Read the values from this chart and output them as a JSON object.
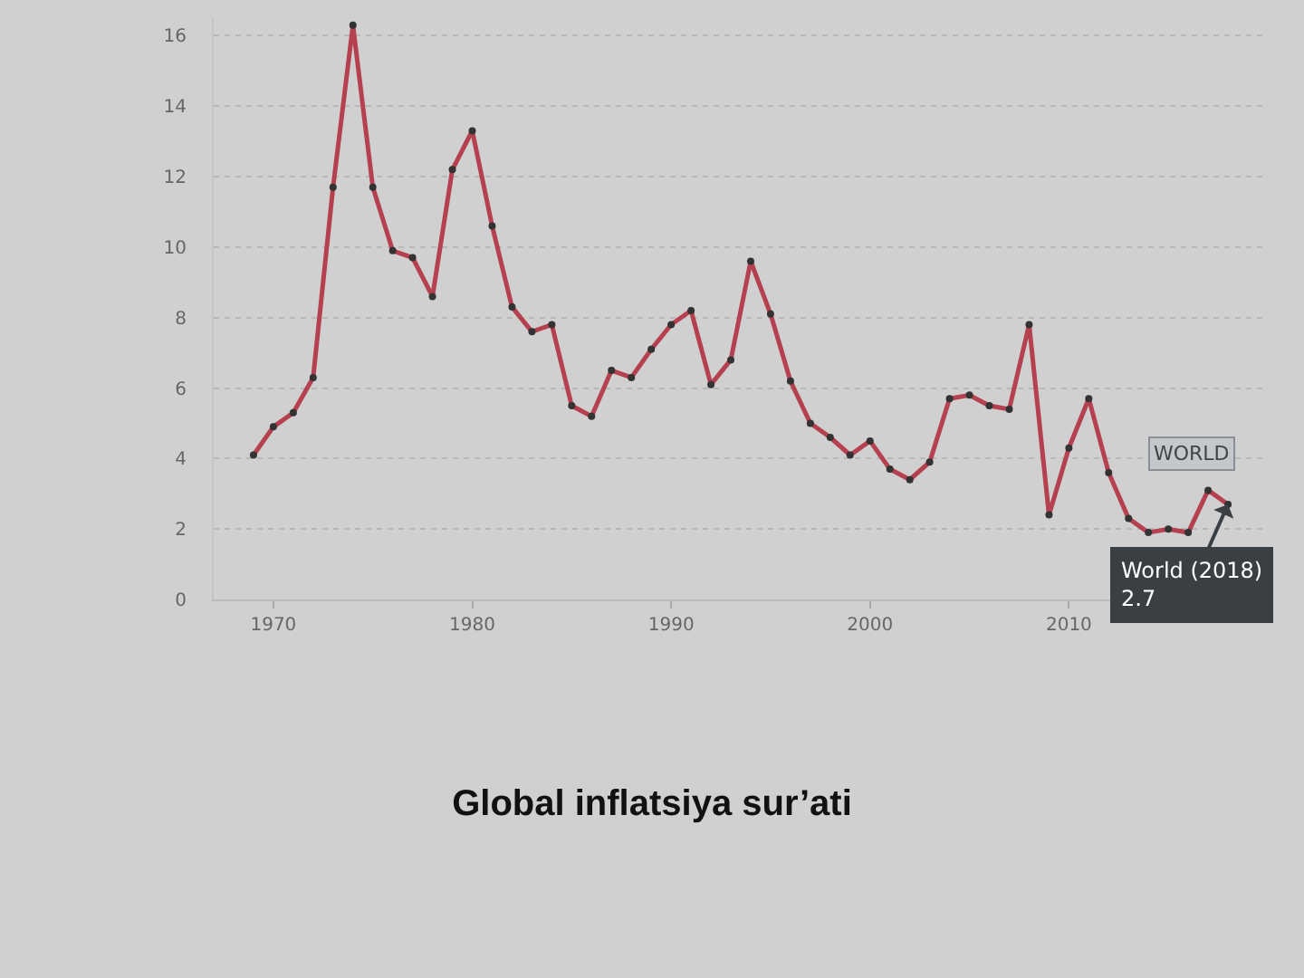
{
  "chart_data": {
    "type": "line",
    "title": "Global inflatsiya sur’ati",
    "x": [
      1969,
      1970,
      1971,
      1972,
      1973,
      1974,
      1975,
      1976,
      1977,
      1978,
      1979,
      1980,
      1981,
      1982,
      1983,
      1984,
      1985,
      1986,
      1987,
      1988,
      1989,
      1990,
      1991,
      1992,
      1993,
      1994,
      1995,
      1996,
      1997,
      1998,
      1999,
      2000,
      2001,
      2002,
      2003,
      2004,
      2005,
      2006,
      2007,
      2008,
      2009,
      2010,
      2011,
      2012,
      2013,
      2014,
      2015,
      2016,
      2017,
      2018
    ],
    "series": [
      {
        "name": "WORLD",
        "color": "#b5404f",
        "values": [
          4.1,
          4.9,
          5.3,
          6.3,
          11.7,
          16.3,
          11.7,
          9.9,
          9.7,
          8.6,
          12.2,
          13.3,
          10.6,
          8.3,
          7.6,
          7.8,
          5.5,
          5.2,
          6.5,
          6.3,
          7.1,
          7.8,
          8.2,
          6.1,
          6.8,
          9.6,
          8.1,
          6.2,
          5.0,
          4.6,
          4.1,
          4.5,
          3.7,
          3.4,
          3.9,
          5.7,
          5.8,
          5.5,
          5.4,
          7.8,
          2.4,
          4.3,
          5.7,
          3.6,
          2.3,
          1.9,
          2.0,
          1.9,
          3.1,
          2.7
        ]
      }
    ],
    "annotations": [
      {
        "text": "World (2018)\n2.7",
        "x": 2018,
        "y": 2.7
      }
    ],
    "xlim": [
      1967,
      2020
    ],
    "xticks": [
      1970,
      1980,
      1990,
      2000,
      2010
    ],
    "ylim": [
      0,
      16.5
    ],
    "yticks": [
      0,
      2,
      4,
      6,
      8,
      10,
      12,
      14,
      16
    ],
    "grid": "y",
    "legend": false,
    "marker": "circle",
    "line_style": "solid"
  }
}
